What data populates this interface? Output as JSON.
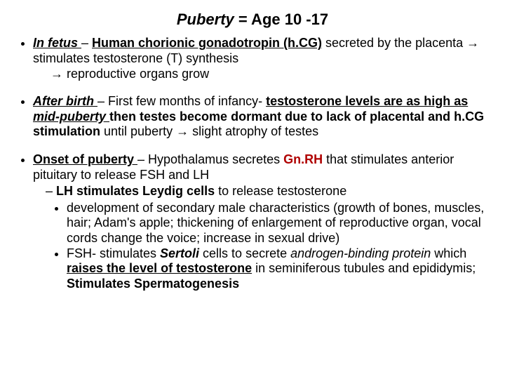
{
  "title_1": "Puberty",
  "title_2": " = Age 10 -17",
  "s1": {
    "infetus": "In fetus ",
    "dash": "– ",
    "hcg": "Human chorionic gonadotropin (h.CG)",
    "rest1": " secreted by the placenta  ",
    "arrow1": "→",
    "rest2": " stimulates testosterone (T) synthesis",
    "indent_arrow": "→",
    "rest3": " reproductive organs grow"
  },
  "s2": {
    "afterbirth": "After birth ",
    "dash": "– First few months of infancy- ",
    "t_levels": "testosterone levels are as high as ",
    "midpub": "mid-puberty ",
    "rest1": "then testes become dormant due to lack of placental and h.CG stimulation",
    "rest2": " until puberty ",
    "arrow": "→",
    "rest3": " slight atrophy of testes"
  },
  "s3": {
    "onset": "Onset of puberty ",
    "dash": "– Hypothalamus secretes ",
    "gnrh": "Gn.RH",
    "rest1": " that stimulates anterior pituitary to release FSH and LH",
    "lh_line": "LH stimulates Leydig cells",
    "lh_rest": " to release testosterone",
    "dev1": "development of secondary male characteristics (growth of bones, muscles, hair; Adam's apple; thickening of  enlargement of reproductive organ, vocal cords change the voice; increase in sexual drive)",
    "fsh_a": "FSH- stimulates ",
    "fsh_b": "Sertoli",
    "fsh_c": " cells to secrete ",
    "fsh_d": "androgen-binding protein",
    "fsh_e": " which ",
    "fsh_f": "raises the level of testosterone",
    "fsh_g": " in seminiferous tubules and epididymis; ",
    "fsh_h": "Stimulates Spermatogenesis"
  }
}
